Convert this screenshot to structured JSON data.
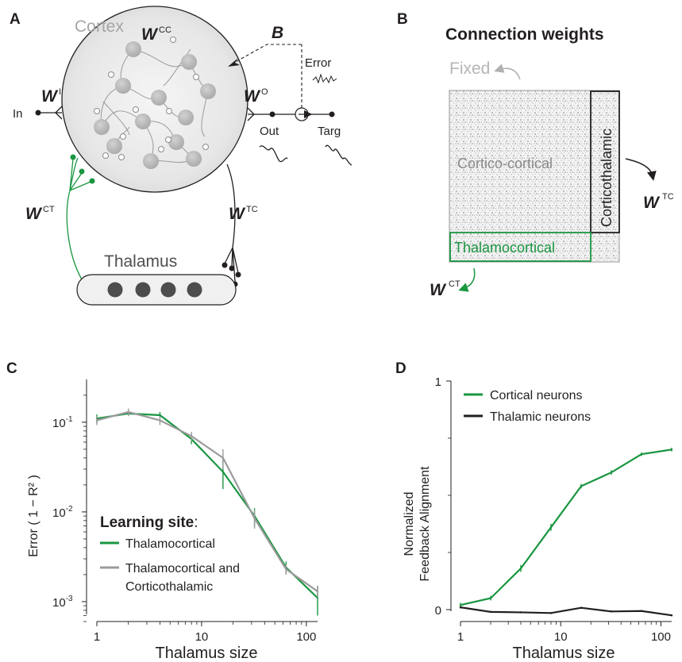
{
  "panelA": {
    "label": "A",
    "cortex": "Cortex",
    "w_cc": {
      "letter": "W",
      "sup": "CC"
    },
    "w_i": {
      "letter": "W",
      "sup": "I"
    },
    "w_o": {
      "letter": "W",
      "sup": "O"
    },
    "w_ct": {
      "letter": "W",
      "sup": "CT"
    },
    "w_tc": {
      "letter": "W",
      "sup": "TC"
    },
    "b": "B",
    "error": "Error",
    "in": "In",
    "out": "Out",
    "targ": "Targ",
    "thalamus": "Thalamus"
  },
  "panelB": {
    "label": "B",
    "title": "Connection weights",
    "fixed": "Fixed",
    "cortico_cortical": "Cortico-cortical",
    "corticothalamic": "Corticothalamic",
    "thalamocortical": "Thalamocortical",
    "w_tc": {
      "letter": "W",
      "sup": "TC"
    },
    "w_ct": {
      "letter": "W",
      "sup": "CT"
    }
  },
  "colors": {
    "green": "#1a9641",
    "gray": "#9b9b9b",
    "black": "#231f20",
    "neuron": "#bdbdbd",
    "thalamic_neuron": "#4d4d4d"
  },
  "chart_data": [
    {
      "panel": "C",
      "type": "line",
      "xlabel": "Thalamus size",
      "ylabel": "Error ( 1 − R² )",
      "xscale": "log",
      "yscale": "log",
      "xlim": [
        1,
        128
      ],
      "ylim": [
        0.0006,
        0.3
      ],
      "x_ticks": [
        "1",
        "10",
        "100"
      ],
      "y_ticks": [
        {
          "base": "10",
          "exp": "-1"
        },
        {
          "base": "10",
          "exp": "-2"
        },
        {
          "base": "10",
          "exp": "-3"
        }
      ],
      "legend_title": "Learning site",
      "legend_colon": ":",
      "legend_position": "lower-left",
      "x": [
        1,
        2,
        4,
        8,
        16,
        32,
        64,
        128
      ],
      "series": [
        {
          "name": "Thalamocortical",
          "color": "#1a9641",
          "values": [
            0.11,
            0.125,
            0.12,
            0.065,
            0.028,
            0.009,
            0.0024,
            0.0011
          ],
          "err": [
            0.012,
            0.008,
            0.01,
            0.008,
            0.01,
            0.002,
            0.0004,
            0.0004
          ]
        },
        {
          "name": "Thalamocortical and Corticothalamic",
          "name_line1": "Thalamocortical and",
          "name_line2": "Corticothalamic",
          "color": "#9b9b9b",
          "values": [
            0.105,
            0.13,
            0.105,
            0.07,
            0.04,
            0.0085,
            0.0023,
            0.0013
          ],
          "err": [
            0.012,
            0.012,
            0.012,
            0.008,
            0.01,
            0.002,
            0.0003,
            0.0002
          ]
        }
      ]
    },
    {
      "panel": "D",
      "type": "line",
      "xlabel": "Thalamus size",
      "ylabel_line1": "Normalized",
      "ylabel_line2": "Feedback Alignment",
      "xscale": "log",
      "xlim": [
        1,
        128
      ],
      "ylim": [
        0,
        1
      ],
      "x_ticks": [
        "1",
        "10",
        "100"
      ],
      "y_ticks": [
        "1",
        "0"
      ],
      "legend_position": "top-left",
      "x": [
        1,
        2,
        4,
        8,
        16,
        32,
        64,
        128
      ],
      "series": [
        {
          "name": "Cortical neurons",
          "color": "#1a9641",
          "values": [
            0.02,
            0.05,
            0.18,
            0.36,
            0.54,
            0.6,
            0.68,
            0.7
          ],
          "err": [
            0.01,
            0.01,
            0.015,
            0.015,
            0.01,
            0.01,
            0.008,
            0.008
          ]
        },
        {
          "name": "Thalamic neurons",
          "color": "#231f20",
          "values": [
            0.01,
            -0.01,
            -0.012,
            -0.015,
            0.008,
            -0.008,
            -0.006,
            -0.025
          ],
          "err": [
            0.005,
            0.004,
            0.004,
            0.004,
            0.004,
            0.004,
            0.004,
            0.004
          ]
        }
      ]
    }
  ]
}
